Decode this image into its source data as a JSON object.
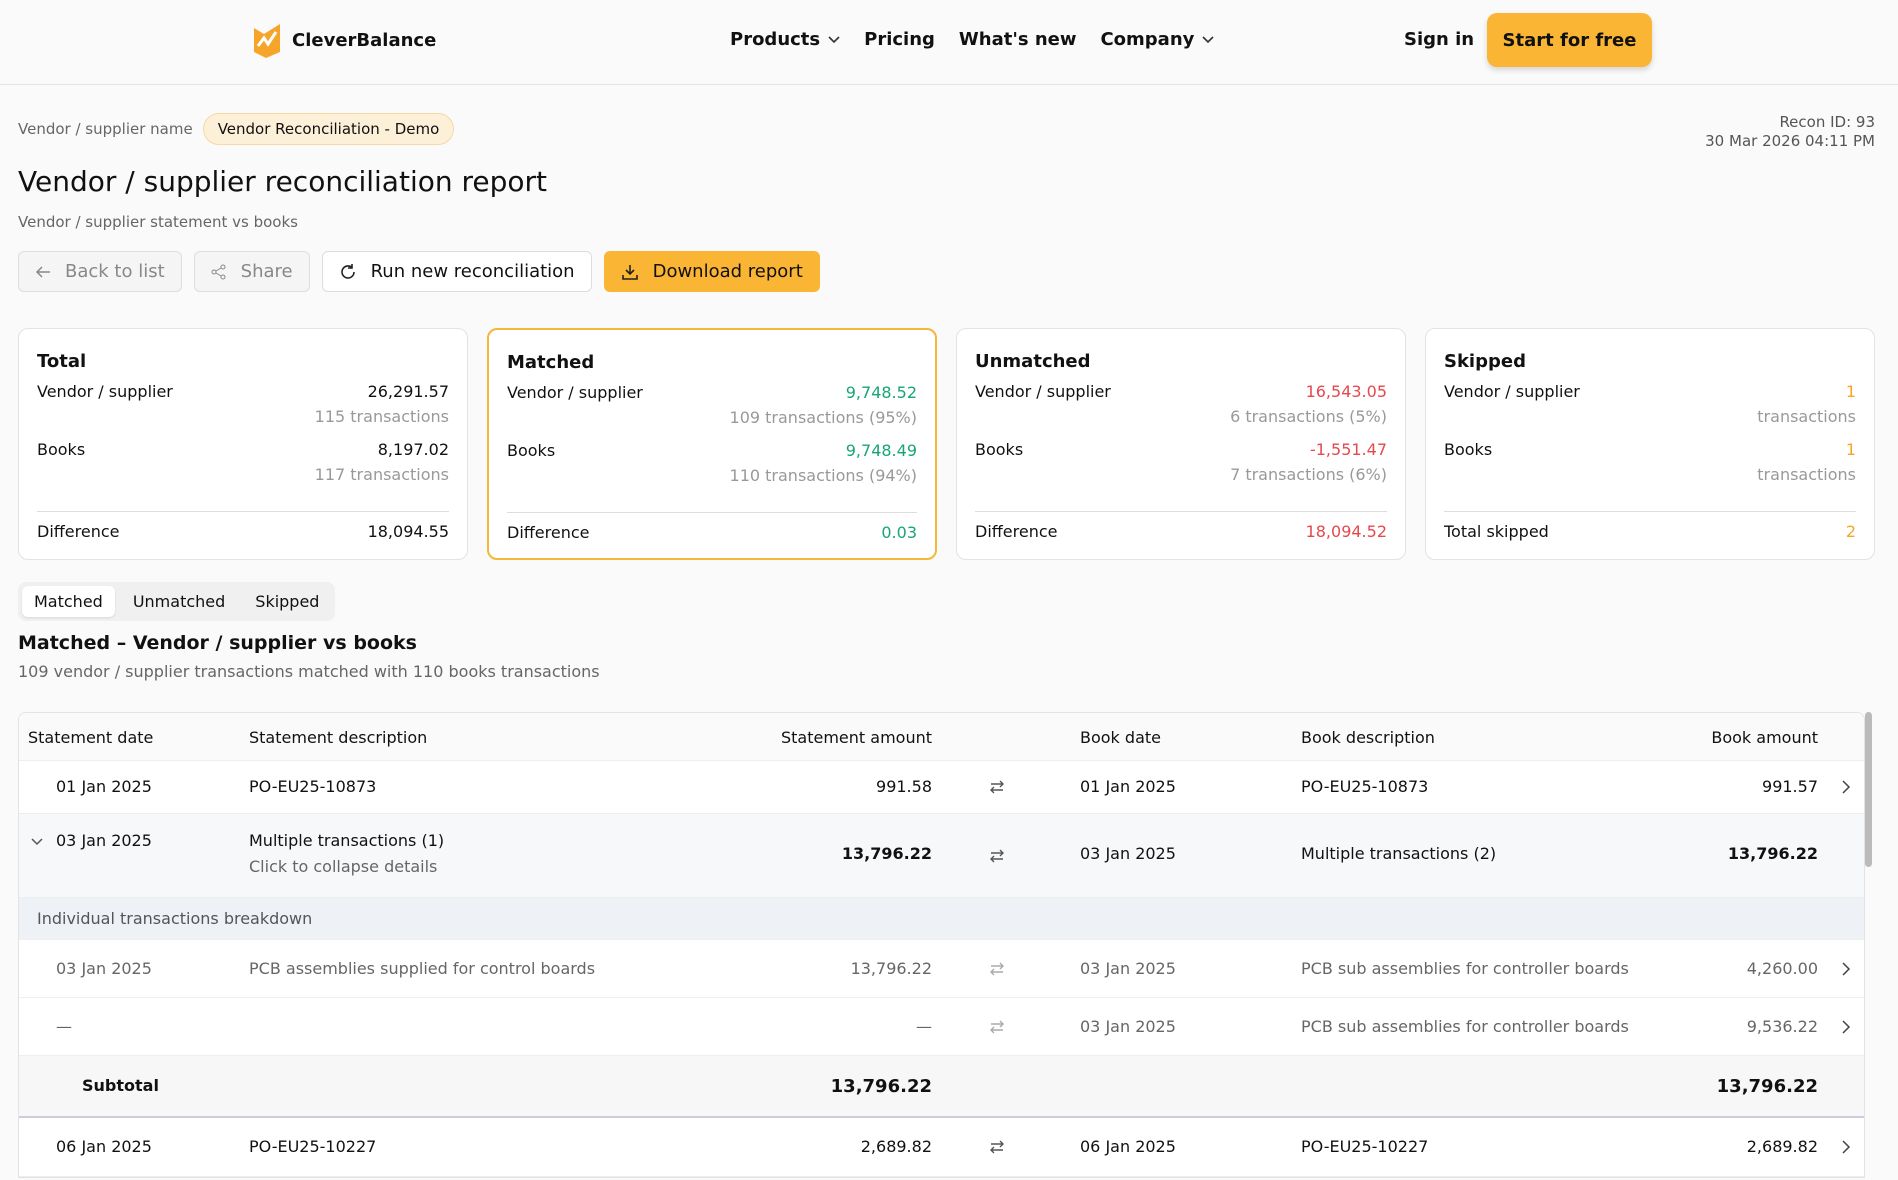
{
  "nav": {
    "logo": "CleverBalance",
    "links": [
      "Products",
      "Pricing",
      "What's new",
      "Company"
    ],
    "sign_in": "Sign in",
    "cta": "Start for free"
  },
  "header": {
    "breadcrumb_label": "Vendor / supplier name",
    "badge": "Vendor Reconciliation - Demo",
    "recon_id": "Recon ID: 93",
    "timestamp": "30 Mar 2026 04:11 PM",
    "title": "Vendor / supplier reconciliation report",
    "subtitle": "Vendor / supplier statement vs books"
  },
  "actions": [
    "Back to list",
    "Share",
    "Run new reconciliation",
    "Download report"
  ],
  "cards": [
    {
      "title": "Total",
      "rows": [
        {
          "label": "Vendor / supplier",
          "value": "26,291.57",
          "sub": "115 transactions"
        },
        {
          "label": "Books",
          "value": "8,197.02",
          "sub": "117 transactions"
        }
      ],
      "footer_label": "Difference",
      "footer_value": "18,094.55"
    },
    {
      "title": "Matched",
      "rows": [
        {
          "label": "Vendor / supplier",
          "value": "9,748.52",
          "sub": "109 transactions (95%)"
        },
        {
          "label": "Books",
          "value": "9,748.49",
          "sub": "110 transactions (94%)"
        }
      ],
      "footer_label": "Difference",
      "footer_value": "0.03"
    },
    {
      "title": "Unmatched",
      "rows": [
        {
          "label": "Vendor / supplier",
          "value": "16,543.05",
          "sub": "6 transactions (5%)"
        },
        {
          "label": "Books",
          "value": "-1,551.47",
          "sub": "7 transactions (6%)"
        }
      ],
      "footer_label": "Difference",
      "footer_value": "18,094.52"
    },
    {
      "title": "Skipped",
      "rows": [
        {
          "label": "Vendor / supplier",
          "value": "1",
          "sub": "transactions"
        },
        {
          "label": "Books",
          "value": "1",
          "sub": "transactions"
        }
      ],
      "footer_label": "Total skipped",
      "footer_value": "2"
    }
  ],
  "tabs": [
    "Matched",
    "Unmatched",
    "Skipped"
  ],
  "section": {
    "title": "Matched – Vendor / supplier vs books",
    "subtitle": "109 vendor / supplier transactions matched with 110 books transactions"
  },
  "table": {
    "columns": [
      "Statement date",
      "Statement description",
      "Statement amount",
      "Book date",
      "Book description",
      "Book amount"
    ],
    "rows": [
      {
        "cells": [
          "01 Jan 2025",
          "PO-EU25-10873",
          "991.58",
          "01 Jan 2025",
          "PO-EU25-10873",
          "991.57"
        ]
      },
      {
        "cells": [
          "03 Jan 2025",
          "Multiple transactions (1)",
          "13,796.22",
          "03 Jan 2025",
          "Multiple transactions (2)",
          "13,796.22"
        ],
        "note": "Click to collapse details",
        "breakdown_label": "Individual transactions breakdown",
        "breakdown": [
          {
            "cells": [
              "03 Jan 2025",
              "PCB assemblies supplied for control boards",
              "13,796.22",
              "03 Jan 2025",
              "PCB sub assemblies for controller boards",
              "4,260.00"
            ]
          },
          {
            "cells": [
              "—",
              null,
              "—",
              "03 Jan 2025",
              "PCB sub assemblies for controller boards",
              "9,536.22"
            ]
          }
        ],
        "subtotal": {
          "label": "Subtotal",
          "statement": "13,796.22",
          "book": "13,796.22"
        }
      },
      {
        "cells": [
          "06 Jan 2025",
          "PO-EU25-10227",
          "2,689.82",
          "06 Jan 2025",
          "PO-EU25-10227",
          "2,689.82"
        ]
      }
    ]
  }
}
